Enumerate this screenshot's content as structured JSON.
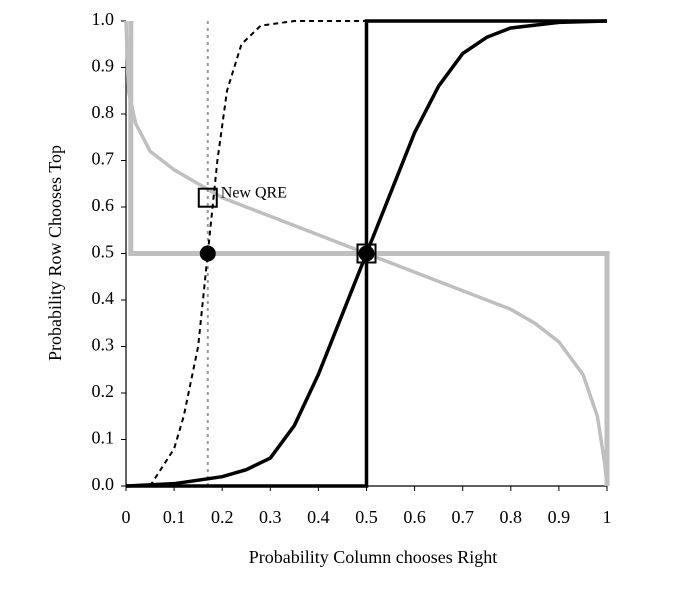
{
  "chart_data": {
    "type": "line",
    "x_label": "Probability Column chooses Right",
    "y_label": "Probability Row Chooses Top",
    "xlim": [
      0,
      1
    ],
    "ylim": [
      0,
      1
    ],
    "xticks": [
      0,
      0.1,
      0.2,
      0.3,
      0.4,
      0.5,
      0.6,
      0.7,
      0.8,
      0.9,
      1
    ],
    "yticks": [
      {
        "value": 0,
        "label": "0.0"
      },
      0.1,
      0.2,
      0.3,
      0.4,
      0.5,
      0.6,
      0.7,
      0.8,
      0.9,
      {
        "value": 1,
        "label": "1.0"
      }
    ],
    "grid": false,
    "series": [
      {
        "color": "#bfbfbf",
        "width": 5,
        "dash": "solid",
        "x": [
          0.01,
          0.01,
          1,
          1
        ],
        "values": [
          1,
          0.5,
          0.5,
          0
        ]
      },
      {
        "color": "#bfbfbf",
        "width": 3.5,
        "dash": "solid",
        "x": [
          0,
          0.005,
          0.02,
          0.05,
          0.1,
          0.15,
          0.2,
          0.3,
          0.4,
          0.5,
          0.6,
          0.7,
          0.8,
          0.85,
          0.9,
          0.95,
          0.98,
          0.995,
          1
        ],
        "values": [
          1,
          0.85,
          0.78,
          0.72,
          0.68,
          0.65,
          0.62,
          0.58,
          0.54,
          0.5,
          0.46,
          0.42,
          0.38,
          0.35,
          0.31,
          0.24,
          0.15,
          0.05,
          0
        ]
      },
      {
        "color": "#999999",
        "width": 2,
        "dash": "dotted",
        "x": [
          0.17,
          0.17
        ],
        "values": [
          0,
          1
        ]
      },
      {
        "color": "#000000",
        "width": 3.5,
        "dash": "solid",
        "x": [
          0,
          0.5,
          0.5,
          1
        ],
        "values": [
          0,
          0,
          1,
          1
        ]
      },
      {
        "color": "#000000",
        "width": 3.5,
        "dash": "solid",
        "x": [
          0,
          0.1,
          0.2,
          0.25,
          0.3,
          0.35,
          0.4,
          0.45,
          0.5,
          0.55,
          0.6,
          0.65,
          0.7,
          0.75,
          0.8,
          0.9,
          1
        ],
        "values": [
          0,
          0.005,
          0.02,
          0.035,
          0.06,
          0.13,
          0.24,
          0.37,
          0.5,
          0.63,
          0.76,
          0.86,
          0.93,
          0.965,
          0.985,
          0.997,
          1
        ]
      },
      {
        "color": "#000000",
        "width": 2,
        "dash": "dashed",
        "x": [
          0.05,
          0.1,
          0.12,
          0.15,
          0.17,
          0.19,
          0.21,
          0.24,
          0.28,
          0.35,
          0.5
        ],
        "values": [
          0,
          0.08,
          0.15,
          0.3,
          0.5,
          0.7,
          0.85,
          0.95,
          0.99,
          1,
          1
        ]
      }
    ],
    "markers": [
      {
        "x": 0.17,
        "y": 0.5,
        "shape": "circle"
      },
      {
        "x": 0.5,
        "y": 0.5,
        "shape": "circle"
      },
      {
        "x": 0.17,
        "y": 0.62,
        "shape": "square"
      },
      {
        "x": 0.5,
        "y": 0.5,
        "shape": "square"
      }
    ],
    "annotation": "New QRE"
  }
}
